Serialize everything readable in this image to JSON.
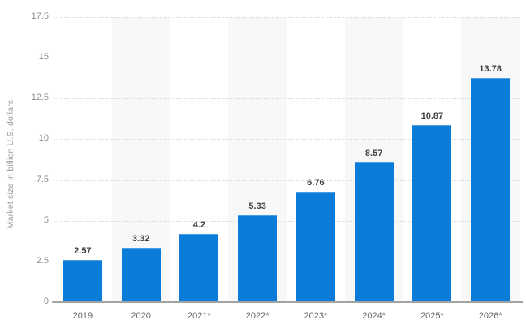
{
  "chart_data": {
    "type": "bar",
    "title": "",
    "ylabel": "Market size in billion U.S. dollars",
    "xlabel": "",
    "categories": [
      "2019",
      "2020",
      "2021*",
      "2022*",
      "2023*",
      "2024*",
      "2025*",
      "2026*"
    ],
    "values": [
      2.57,
      3.32,
      4.2,
      5.33,
      6.76,
      8.57,
      10.87,
      13.78
    ],
    "value_labels": [
      "2.57",
      "3.32",
      "4.2",
      "5.33",
      "6.76",
      "8.57",
      "10.87",
      "13.78"
    ],
    "ylim": [
      0,
      17.5
    ],
    "ytick_step": 2.5,
    "ytick_labels": [
      "0",
      "2.5",
      "5",
      "7.5",
      "10",
      "12.5",
      "15",
      "17.5"
    ],
    "grid": "horizontal-dotted",
    "legend": "none",
    "banded_columns": [
      1,
      3,
      5,
      7
    ],
    "colors": {
      "bar": "#0b7dd8",
      "bar_top_edge": "#4d9de2",
      "plot_band": "#f8f8f8",
      "gridline": "#d8d8d8",
      "axis_line": "#a3a3a3",
      "ytick_text": "#8d8d8d",
      "xtick_text": "#666666",
      "value_label_text": "#404040",
      "ylabel_text": "#9b9b9b",
      "background": "#ffffff"
    }
  }
}
